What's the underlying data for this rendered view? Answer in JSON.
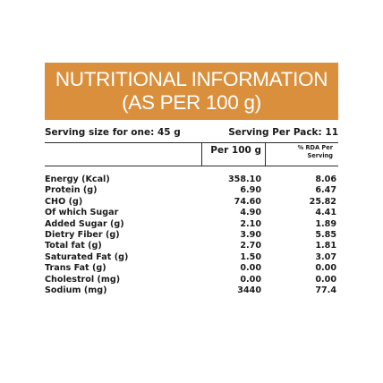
{
  "header": {
    "title_line1": "NUTRITIONAL INFORMATION",
    "title_line2": "(AS PER 100 g)",
    "bg_color": "#da8f3c"
  },
  "serving": {
    "size": "Serving size for one: 45 g",
    "per_pack": "Serving Per Pack: 11"
  },
  "columns": {
    "per100": "Per 100 g",
    "rda_line1": "% RDA Per",
    "rda_line2": "Serving"
  },
  "rows": [
    {
      "name": "Energy (Kcal)",
      "per100": "358.10",
      "rda": "8.06"
    },
    {
      "name": "Protein (g)",
      "per100": "6.90",
      "rda": "6.47"
    },
    {
      "name": "CHO (g)",
      "per100": "74.60",
      "rda": "25.82"
    },
    {
      "name": "Of which Sugar",
      "per100": "4.90",
      "rda": "4.41"
    },
    {
      "name": "Added Sugar (g)",
      "per100": "2.10",
      "rda": "1.89"
    },
    {
      "name": "Dietry Fiber (g)",
      "per100": "3.90",
      "rda": "5.85"
    },
    {
      "name": "Total fat (g)",
      "per100": "2.70",
      "rda": "1.81"
    },
    {
      "name": "Saturated Fat (g)",
      "per100": "1.50",
      "rda": "3.07"
    },
    {
      "name": "Trans Fat (g)",
      "per100": "0.00",
      "rda": "0.00"
    },
    {
      "name": "Cholestrol (mg)",
      "per100": "0.00",
      "rda": "0.00"
    },
    {
      "name": "Sodium (mg)",
      "per100": "3440",
      "rda": "77.4"
    }
  ]
}
